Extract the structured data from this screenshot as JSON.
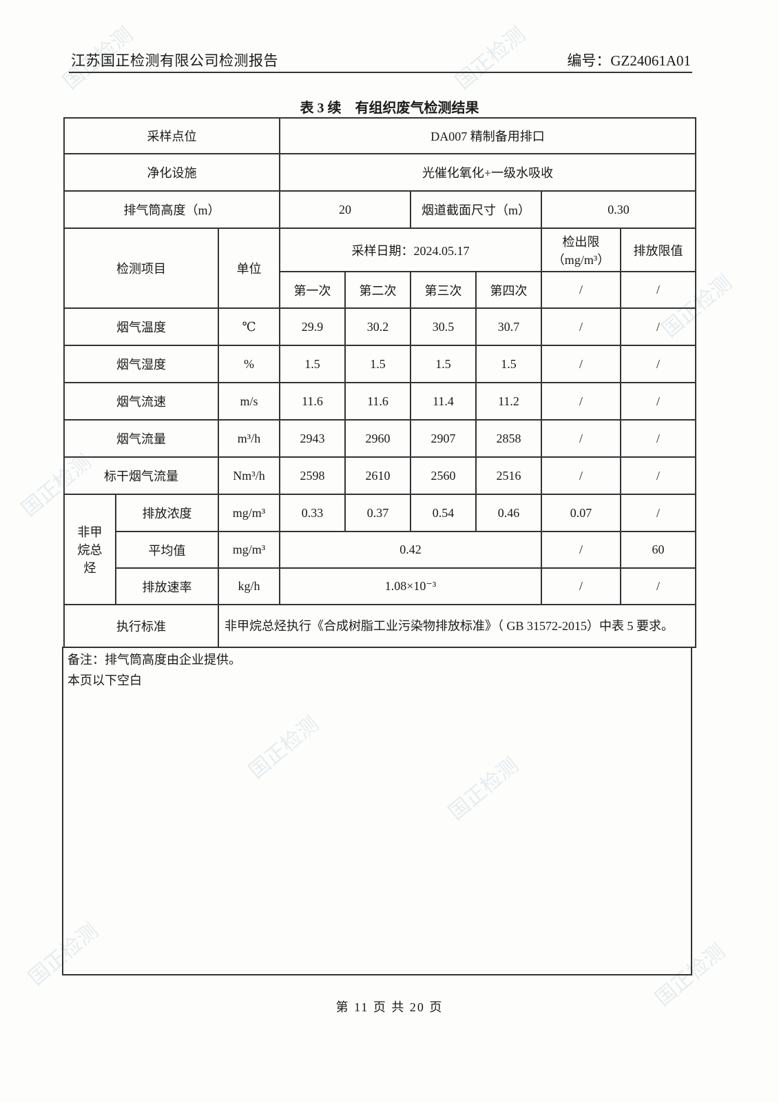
{
  "header": {
    "company": "江苏国正检测有限公司检测报告",
    "report_no": "编号：GZ24061A01"
  },
  "title": "表 3 续　有组织废气检测结果",
  "info": {
    "sampling_point_label": "采样点位",
    "sampling_point": "DA007 精制备用排口",
    "purification_label": "净化设施",
    "purification": "光催化氧化+一级水吸收",
    "stack_height_label": "排气筒高度（m）",
    "stack_height": "20",
    "flue_size_label": "烟道截面尺寸（m）",
    "flue_size": "0.30"
  },
  "columns": {
    "item": "检测项目",
    "unit": "单位",
    "sampling_date": "采样日期：2024.05.17",
    "detection_limit": "检出限（mg/m³）",
    "emission_limit": "排放限值",
    "runs": [
      "第一次",
      "第二次",
      "第三次",
      "第四次"
    ],
    "slash": "/"
  },
  "rows": [
    {
      "item": "烟气温度",
      "unit": "℃",
      "values": [
        "29.9",
        "30.2",
        "30.5",
        "30.7"
      ],
      "limit": "/",
      "max": "/"
    },
    {
      "item": "烟气湿度",
      "unit": "%",
      "values": [
        "1.5",
        "1.5",
        "1.5",
        "1.5"
      ],
      "limit": "/",
      "max": "/"
    },
    {
      "item": "烟气流速",
      "unit": "m/s",
      "values": [
        "11.6",
        "11.6",
        "11.4",
        "11.2"
      ],
      "limit": "/",
      "max": "/"
    },
    {
      "item": "烟气流量",
      "unit": "m³/h",
      "values": [
        "2943",
        "2960",
        "2907",
        "2858"
      ],
      "limit": "/",
      "max": "/"
    },
    {
      "item": "标干烟气流量",
      "unit": "Nm³/h",
      "values": [
        "2598",
        "2610",
        "2560",
        "2516"
      ],
      "limit": "/",
      "max": "/"
    }
  ],
  "nmhc": {
    "group": "非甲烷总烃",
    "conc": {
      "item": "排放浓度",
      "unit": "mg/m³",
      "values": [
        "0.33",
        "0.37",
        "0.54",
        "0.46"
      ],
      "limit": "0.07",
      "max": "/"
    },
    "avg": {
      "item": "平均值",
      "unit": "mg/m³",
      "value": "0.42",
      "limit": "/",
      "max": "60"
    },
    "rate": {
      "item": "排放速率",
      "unit": "kg/h",
      "value": "1.08×10⁻³",
      "limit": "/",
      "max": "/"
    }
  },
  "standard": {
    "label": "执行标准",
    "text": "非甲烷总烃执行《合成树脂工业污染物排放标准》（ GB 31572-2015）中表 5 要求。"
  },
  "notes": [
    "备注：排气筒高度由企业提供。",
    "本页以下空白"
  ],
  "footer": "第 11 页 共 20 页",
  "watermark": "国正检测 Guozheng Testing"
}
